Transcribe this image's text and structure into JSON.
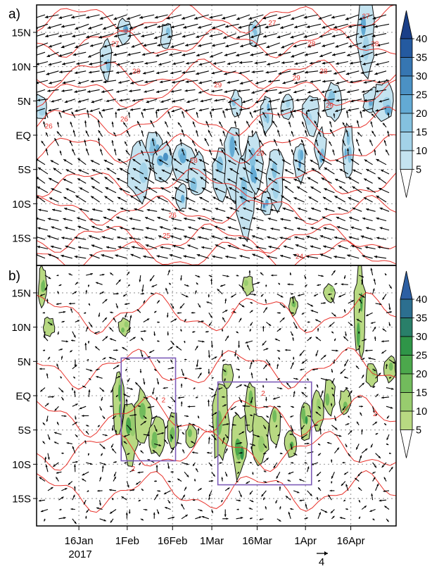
{
  "chart_data": [
    {
      "type": "heatmap",
      "panel_label": "a)",
      "variable_colors": {
        "contour": "#e8322b",
        "vector": "#000000"
      },
      "y_ticks": [
        "15N",
        "10N",
        "5N",
        "EQ",
        "5S",
        "10S",
        "15S"
      ],
      "y_values": [
        15,
        10,
        5,
        0,
        -5,
        -10,
        -15
      ],
      "ylim": [
        -19,
        19
      ],
      "colorbar": {
        "levels": [
          5,
          10,
          15,
          20,
          25,
          30,
          35,
          40
        ],
        "labels": [
          "5",
          "10",
          "15",
          "20",
          "25",
          "30",
          "35",
          "40"
        ],
        "colors": [
          "#e3f2f8",
          "#c4e3f0",
          "#a3d2e8",
          "#84c1df",
          "#63aad4",
          "#4b91c4",
          "#3676b2",
          "#245aa0",
          "#1a3f88"
        ]
      },
      "contour_labels": [
        "27",
        "27",
        "27",
        "28",
        "28",
        "28",
        "28",
        "28",
        "29",
        "29",
        "29",
        "29",
        "26",
        "26",
        "26",
        "25",
        "24"
      ],
      "grid": true
    },
    {
      "type": "heatmap",
      "panel_label": "b)",
      "variable_colors": {
        "contour": "#e8322b",
        "vector": "#000000",
        "box": "#7d5cb8"
      },
      "y_ticks": [
        "15N",
        "10N",
        "5N",
        "EQ",
        "5S",
        "10S",
        "15S"
      ],
      "y_values": [
        15,
        10,
        5,
        0,
        -5,
        -10,
        -15
      ],
      "ylim": [
        -19,
        19
      ],
      "colorbar": {
        "levels": [
          5,
          10,
          15,
          20,
          25,
          30,
          35,
          40
        ],
        "labels": [
          "5",
          "10",
          "15",
          "20",
          "25",
          "30",
          "35",
          "40"
        ],
        "colors": [
          "#d5e49a",
          "#b8d982",
          "#98cc6e",
          "#72bb5c",
          "#4ca84c",
          "#2f9548",
          "#297f69",
          "#2c6f8f",
          "#2d5fa3"
        ]
      },
      "contour_labels": [
        "2",
        "2",
        "2",
        "2",
        "2"
      ],
      "boxes": [
        {
          "lon_start": "29Jan",
          "lon_end": "16Feb",
          "lat_top": 5.5,
          "lat_bottom": -9.5
        },
        {
          "lon_start": "2Mar",
          "lon_end": "2Apr",
          "lat_top": 2,
          "lat_bottom": -13
        }
      ],
      "grid": true
    }
  ],
  "x_axis": {
    "tick_labels": [
      "16Jan",
      "1Feb",
      "16Feb",
      "1Mar",
      "16Mar",
      "1Apr",
      "16Apr"
    ],
    "tick_days": [
      15,
      31,
      46,
      59,
      74,
      90,
      105
    ],
    "year_label": "2017",
    "xlim_days": [
      1,
      120
    ]
  },
  "vector_key": {
    "label": "4",
    "magnitude": 4
  }
}
